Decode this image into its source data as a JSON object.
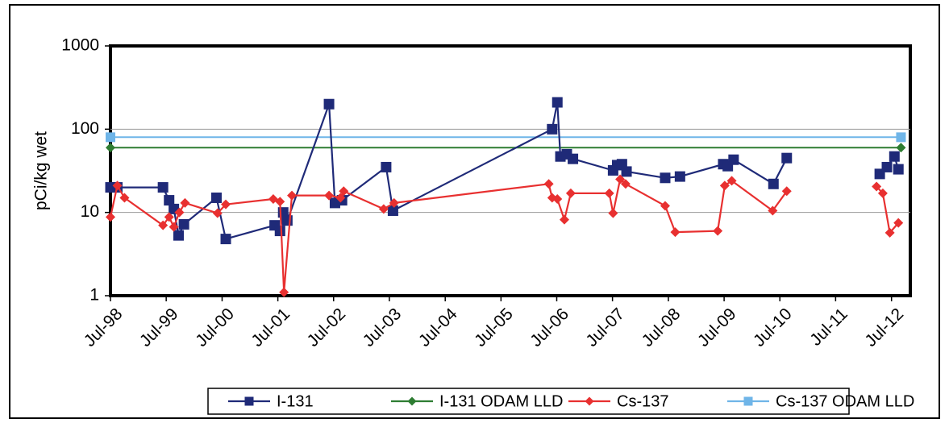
{
  "chart_data": {
    "type": "line",
    "title": "",
    "xlabel": "",
    "ylabel": "pCi/kg wet",
    "yscale": "log",
    "ylim": [
      1,
      1000
    ],
    "yticks": [
      1,
      10,
      100,
      1000
    ],
    "ytick_labels": [
      "1",
      "10",
      "100",
      "1000"
    ],
    "xlim": [
      "1998-07-01",
      "2012-11-01"
    ],
    "xticks": [
      "1998-07-01",
      "1999-07-01",
      "2000-07-01",
      "2001-07-01",
      "2002-07-01",
      "2003-07-01",
      "2004-07-01",
      "2005-07-01",
      "2006-07-01",
      "2007-07-01",
      "2008-07-01",
      "2009-07-01",
      "2010-07-01",
      "2011-07-01",
      "2012-07-01"
    ],
    "xtick_labels": [
      "Jul-98",
      "Jul-99",
      "Jul-00",
      "Jul-01",
      "Jul-02",
      "Jul-03",
      "Jul-04",
      "Jul-05",
      "Jul-06",
      "Jul-07",
      "Jul-08",
      "Jul-09",
      "Jul-10",
      "Jul-11",
      "Jul-12"
    ],
    "grid": "horizontal",
    "legend_position": "bottom",
    "series": [
      {
        "name": "I-131",
        "color": "#1f2a78",
        "marker": "square",
        "segments": [
          [
            [
              "1998-07-01",
              20
            ],
            [
              "1998-08-15",
              20
            ],
            [
              "1999-06-10",
              20
            ],
            [
              "1999-07-20",
              14
            ],
            [
              "1999-08-20",
              11
            ],
            [
              "1999-09-20",
              5.3
            ],
            [
              "1999-10-25",
              7.2
            ],
            [
              "2000-05-25",
              15
            ],
            [
              "2000-07-25",
              4.8
            ],
            [
              "2001-06-10",
              7
            ],
            [
              "2001-07-15",
              6
            ],
            [
              "2001-08-05",
              10
            ],
            [
              "2001-09-01",
              8
            ],
            [
              "2002-06-01",
              200
            ],
            [
              "2002-07-10",
              13
            ],
            [
              "2002-08-25",
              14
            ],
            [
              "2003-06-10",
              35
            ],
            [
              "2003-07-25",
              10.5
            ],
            [
              "2006-06-01",
              100
            ],
            [
              "2006-07-05",
              210
            ],
            [
              "2006-07-25",
              47
            ],
            [
              "2006-09-05",
              50
            ],
            [
              "2006-10-15",
              44
            ],
            [
              "2007-07-05",
              32
            ],
            [
              "2007-08-01",
              37
            ],
            [
              "2007-09-01",
              38
            ],
            [
              "2007-10-01",
              31
            ],
            [
              "2008-06-10",
              26
            ],
            [
              "2008-09-15",
              27
            ],
            [
              "2009-06-25",
              38
            ],
            [
              "2009-07-25",
              36
            ],
            [
              "2009-09-01",
              43
            ],
            [
              "2010-05-20",
              22
            ],
            [
              "2010-08-15",
              45
            ]
          ],
          [
            [
              "2012-04-15",
              29
            ],
            [
              "2012-06-01",
              35
            ],
            [
              "2012-07-20",
              47
            ],
            [
              "2012-08-15",
              33
            ]
          ]
        ]
      },
      {
        "name": "I-131 ODAM LLD",
        "color": "#2e7d32",
        "marker": "diamond",
        "segments": [
          [
            [
              "1998-07-01",
              60
            ],
            [
              "2012-09-01",
              60
            ]
          ]
        ]
      },
      {
        "name": "Cs-137",
        "color": "#e83030",
        "marker": "diamond",
        "segments": [
          [
            [
              "1998-07-01",
              8.8
            ],
            [
              "1998-08-15",
              21
            ],
            [
              "1998-10-01",
              15
            ],
            [
              "1999-06-10",
              7
            ],
            [
              "1999-07-20",
              8.8
            ],
            [
              "1999-08-20",
              6.7
            ],
            [
              "1999-09-25",
              10
            ],
            [
              "1999-11-01",
              13
            ],
            [
              "2000-06-01",
              9.8
            ],
            [
              "2000-07-25",
              12.5
            ],
            [
              "2001-06-01",
              14.5
            ],
            [
              "2001-07-15",
              13.5
            ],
            [
              "2001-08-10",
              1.1
            ],
            [
              "2001-10-01",
              16
            ],
            [
              "2002-06-01",
              16
            ],
            [
              "2002-08-15",
              15
            ],
            [
              "2002-09-05",
              18
            ],
            [
              "2003-05-25",
              11
            ],
            [
              "2003-08-01",
              13
            ],
            [
              "2006-05-10",
              22
            ],
            [
              "2006-06-01",
              15
            ],
            [
              "2006-07-05",
              14.5
            ],
            [
              "2006-08-20",
              8.2
            ],
            [
              "2006-10-01",
              17
            ],
            [
              "2007-06-10",
              17
            ],
            [
              "2007-07-05",
              9.8
            ],
            [
              "2007-08-20",
              25
            ],
            [
              "2007-09-25",
              22
            ],
            [
              "2008-06-10",
              12
            ],
            [
              "2008-08-15",
              5.8
            ],
            [
              "2009-05-20",
              6
            ],
            [
              "2009-07-05",
              21
            ],
            [
              "2009-08-20",
              24
            ],
            [
              "2010-05-15",
              10.5
            ],
            [
              "2010-08-15",
              18
            ]
          ],
          [
            [
              "2012-03-25",
              20.5
            ],
            [
              "2012-05-05",
              17
            ],
            [
              "2012-06-20",
              5.7
            ],
            [
              "2012-08-15",
              7.5
            ]
          ]
        ]
      },
      {
        "name": "Cs-137 ODAM LLD",
        "color": "#6fb5e8",
        "marker": "square",
        "segments": [
          [
            [
              "1998-07-01",
              80
            ],
            [
              "2012-09-01",
              80
            ]
          ]
        ]
      }
    ]
  }
}
